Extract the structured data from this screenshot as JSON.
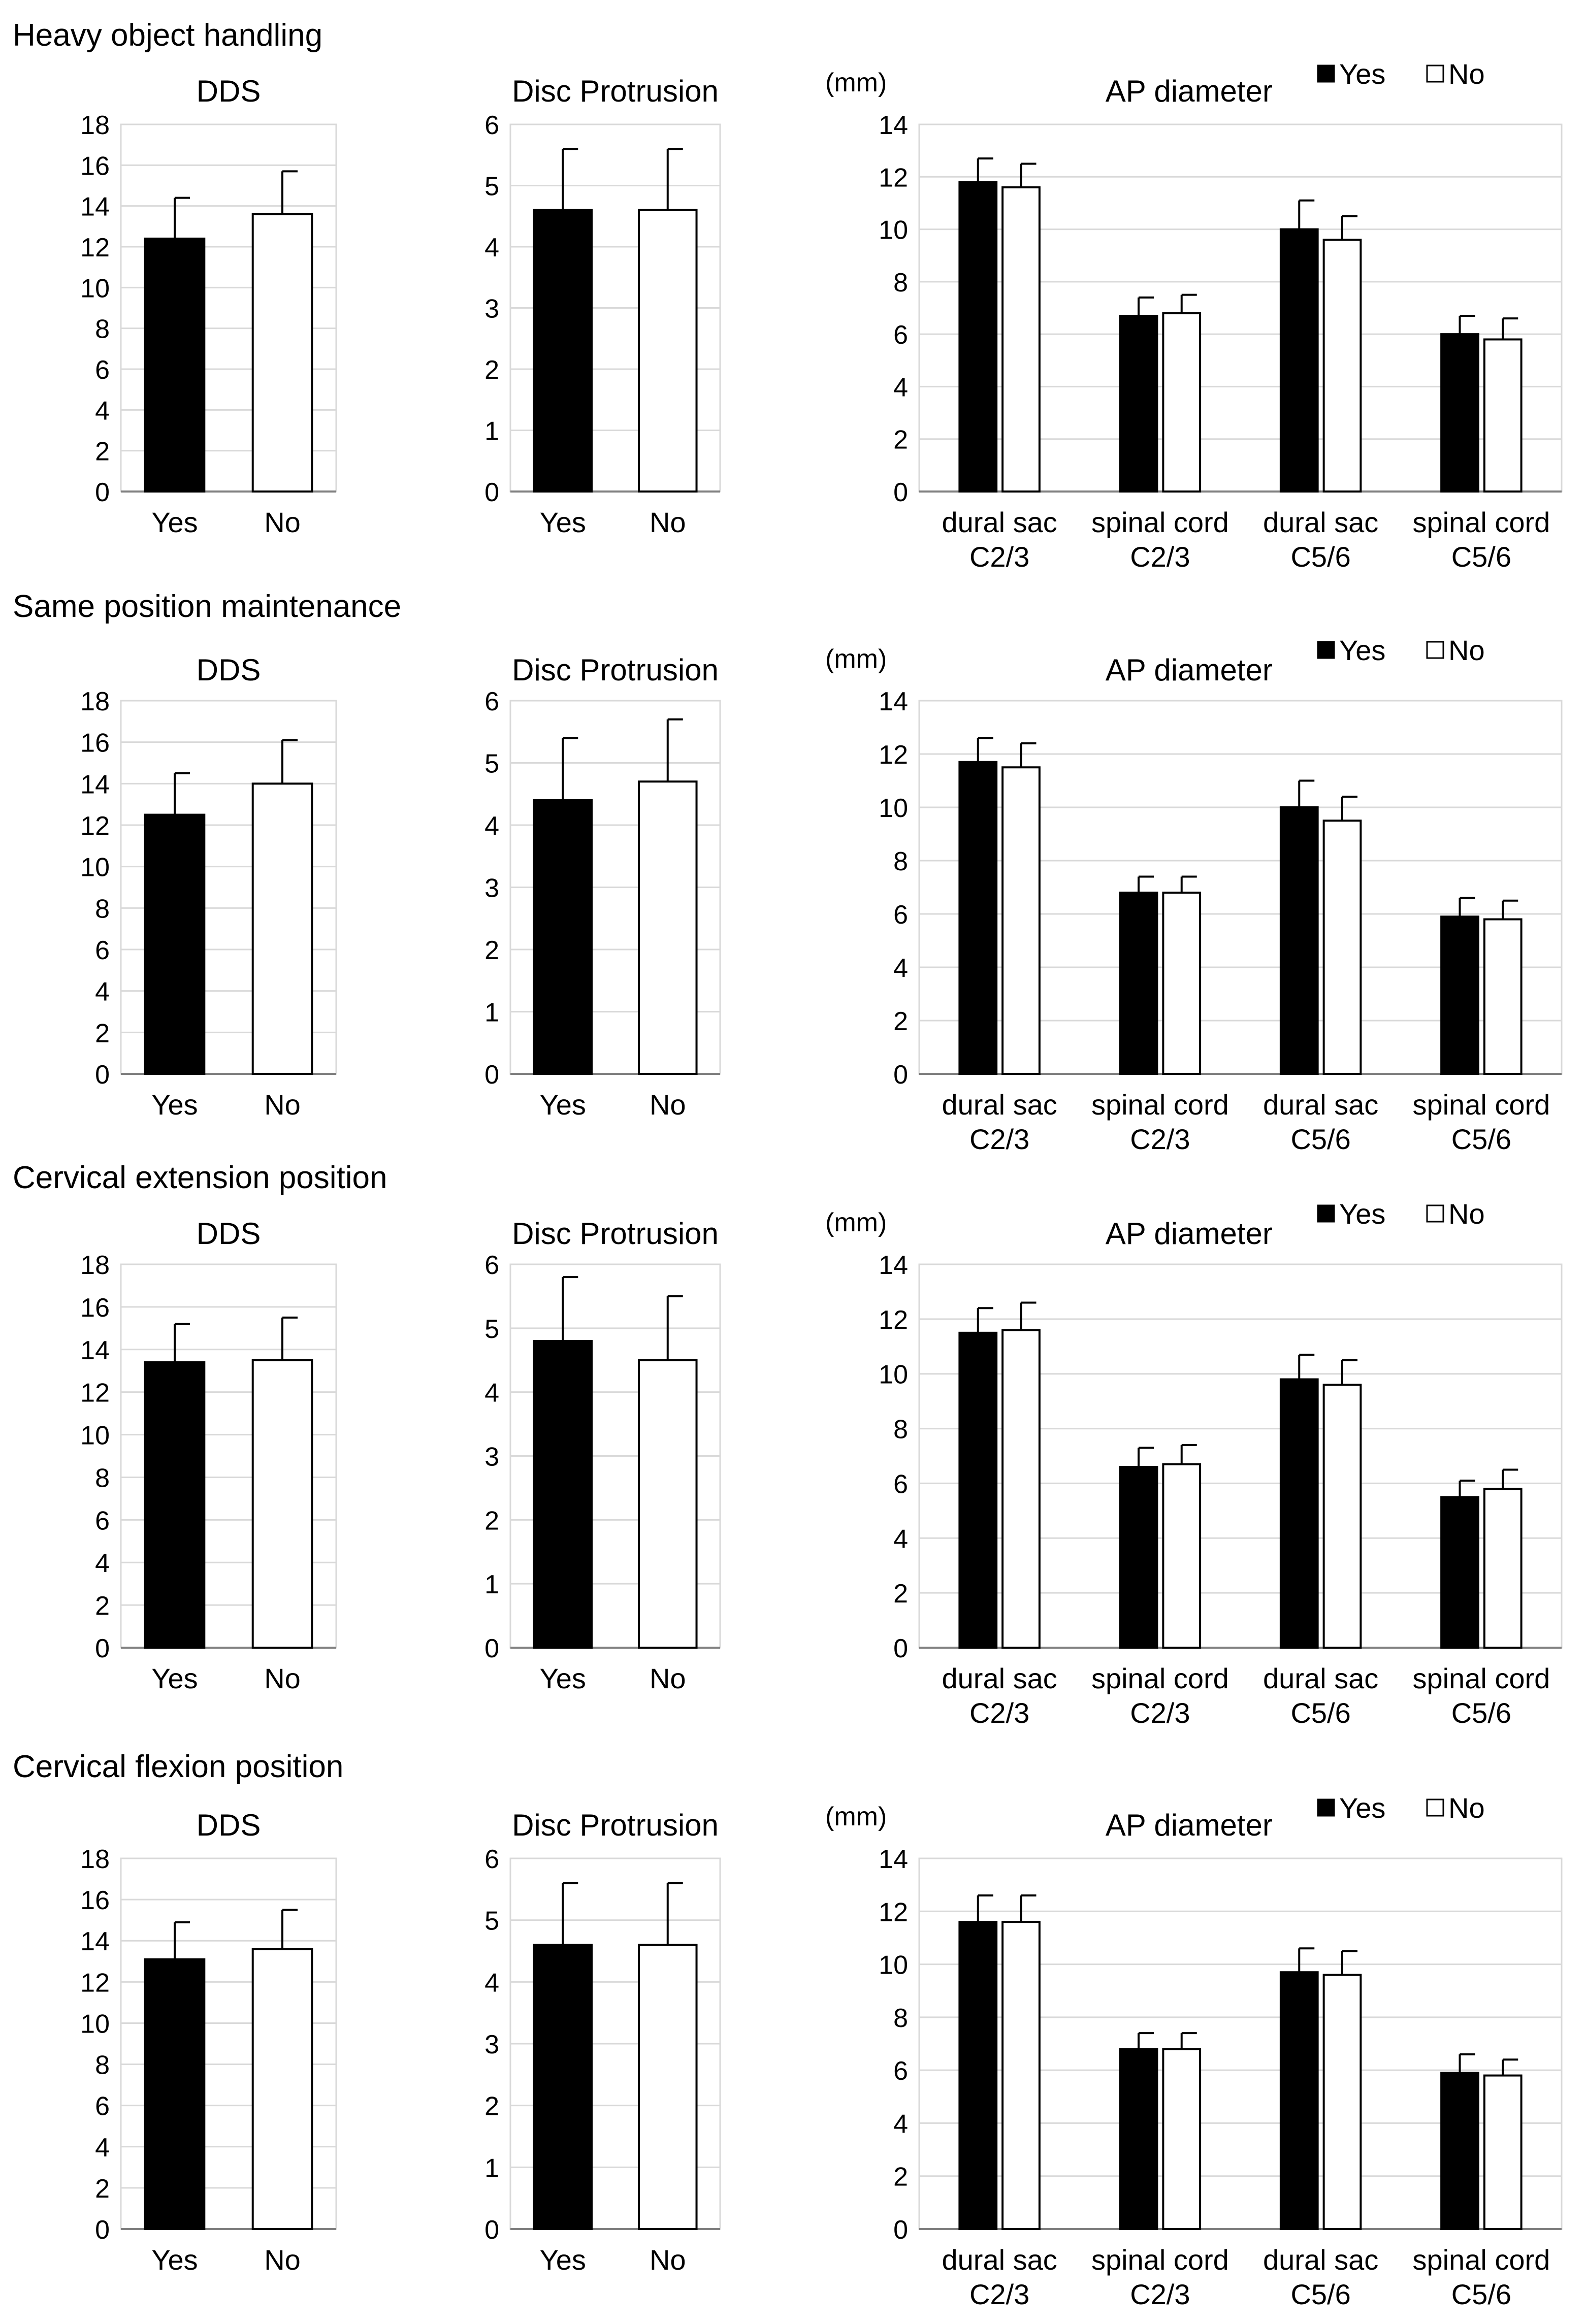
{
  "figure": {
    "legend": {
      "yes_label": "Yes",
      "no_label": "No",
      "yes_color": "#000000",
      "no_color": "#ffffff"
    },
    "sections": [
      {
        "title": "Heavy object handling"
      },
      {
        "title": "Same position maintenance"
      },
      {
        "title": "Cervical extension position"
      },
      {
        "title": "Cervical flexion position"
      }
    ]
  },
  "chart_data": [
    {
      "section": 0,
      "type": "bar",
      "title": "DDS",
      "ylabel": "",
      "ylim": [
        0,
        18
      ],
      "yticks": [
        0,
        2,
        4,
        6,
        8,
        10,
        12,
        14,
        16,
        18
      ],
      "categories": [
        "Yes",
        "No"
      ],
      "values": [
        12.4,
        13.6
      ],
      "errors": [
        2.0,
        2.1
      ],
      "colors": [
        "#000000",
        "#ffffff"
      ]
    },
    {
      "section": 0,
      "type": "bar",
      "title": "Disc Protrusion",
      "ylabel": "",
      "ylim": [
        0,
        6
      ],
      "yticks": [
        0,
        1,
        2,
        3,
        4,
        5,
        6
      ],
      "categories": [
        "Yes",
        "No"
      ],
      "values": [
        4.6,
        4.6
      ],
      "errors": [
        1.0,
        1.0
      ],
      "colors": [
        "#000000",
        "#ffffff"
      ]
    },
    {
      "section": 0,
      "type": "bar",
      "title": "AP diameter",
      "ylabel": "(mm)",
      "ylim": [
        0,
        14
      ],
      "yticks": [
        0,
        2,
        4,
        6,
        8,
        10,
        12,
        14
      ],
      "categories": [
        [
          "dural sac",
          "C2/3"
        ],
        [
          "spinal cord",
          "C2/3"
        ],
        [
          "dural sac",
          "C5/6"
        ],
        [
          "spinal cord",
          "C5/6"
        ]
      ],
      "legend": "top-right",
      "series": [
        {
          "name": "Yes",
          "color": "#000000",
          "values": [
            11.8,
            6.7,
            10.0,
            6.0
          ],
          "errors": [
            0.9,
            0.7,
            1.1,
            0.7
          ]
        },
        {
          "name": "No",
          "color": "#ffffff",
          "values": [
            11.6,
            6.8,
            9.6,
            5.8
          ],
          "errors": [
            0.9,
            0.7,
            0.9,
            0.8
          ]
        }
      ]
    },
    {
      "section": 1,
      "type": "bar",
      "title": "DDS",
      "ylabel": "",
      "ylim": [
        0,
        18
      ],
      "yticks": [
        0,
        2,
        4,
        6,
        8,
        10,
        12,
        14,
        16,
        18
      ],
      "categories": [
        "Yes",
        "No"
      ],
      "values": [
        12.5,
        14.0
      ],
      "errors": [
        2.0,
        2.1
      ],
      "colors": [
        "#000000",
        "#ffffff"
      ]
    },
    {
      "section": 1,
      "type": "bar",
      "title": "Disc Protrusion",
      "ylabel": "",
      "ylim": [
        0,
        6
      ],
      "yticks": [
        0,
        1,
        2,
        3,
        4,
        5,
        6
      ],
      "categories": [
        "Yes",
        "No"
      ],
      "values": [
        4.4,
        4.7
      ],
      "errors": [
        1.0,
        1.0
      ],
      "colors": [
        "#000000",
        "#ffffff"
      ]
    },
    {
      "section": 1,
      "type": "bar",
      "title": "AP diameter",
      "ylabel": "(mm)",
      "ylim": [
        0,
        14
      ],
      "yticks": [
        0,
        2,
        4,
        6,
        8,
        10,
        12,
        14
      ],
      "categories": [
        [
          "dural sac",
          "C2/3"
        ],
        [
          "spinal cord",
          "C2/3"
        ],
        [
          "dural sac",
          "C5/6"
        ],
        [
          "spinal cord",
          "C5/6"
        ]
      ],
      "legend": "top-right",
      "series": [
        {
          "name": "Yes",
          "color": "#000000",
          "values": [
            11.7,
            6.8,
            10.0,
            5.9
          ],
          "errors": [
            0.9,
            0.6,
            1.0,
            0.7
          ]
        },
        {
          "name": "No",
          "color": "#ffffff",
          "values": [
            11.5,
            6.8,
            9.5,
            5.8
          ],
          "errors": [
            0.9,
            0.6,
            0.9,
            0.7
          ]
        }
      ]
    },
    {
      "section": 2,
      "type": "bar",
      "title": "DDS",
      "ylabel": "",
      "ylim": [
        0,
        18
      ],
      "yticks": [
        0,
        2,
        4,
        6,
        8,
        10,
        12,
        14,
        16,
        18
      ],
      "categories": [
        "Yes",
        "No"
      ],
      "values": [
        13.4,
        13.5
      ],
      "errors": [
        1.8,
        2.0
      ],
      "colors": [
        "#000000",
        "#ffffff"
      ]
    },
    {
      "section": 2,
      "type": "bar",
      "title": "Disc Protrusion",
      "ylabel": "",
      "ylim": [
        0,
        6
      ],
      "yticks": [
        0,
        1,
        2,
        3,
        4,
        5,
        6
      ],
      "categories": [
        "Yes",
        "No"
      ],
      "values": [
        4.8,
        4.5
      ],
      "errors": [
        1.0,
        1.0
      ],
      "colors": [
        "#000000",
        "#ffffff"
      ]
    },
    {
      "section": 2,
      "type": "bar",
      "title": "AP diameter",
      "ylabel": "(mm)",
      "ylim": [
        0,
        14
      ],
      "yticks": [
        0,
        2,
        4,
        6,
        8,
        10,
        12,
        14
      ],
      "categories": [
        [
          "dural sac",
          "C2/3"
        ],
        [
          "spinal cord",
          "C2/3"
        ],
        [
          "dural sac",
          "C5/6"
        ],
        [
          "spinal cord",
          "C5/6"
        ]
      ],
      "legend": "top-right",
      "series": [
        {
          "name": "Yes",
          "color": "#000000",
          "values": [
            11.5,
            6.6,
            9.8,
            5.5
          ],
          "errors": [
            0.9,
            0.7,
            0.9,
            0.6
          ]
        },
        {
          "name": "No",
          "color": "#ffffff",
          "values": [
            11.6,
            6.7,
            9.6,
            5.8
          ],
          "errors": [
            1.0,
            0.7,
            0.9,
            0.7
          ]
        }
      ]
    },
    {
      "section": 3,
      "type": "bar",
      "title": "DDS",
      "ylabel": "",
      "ylim": [
        0,
        18
      ],
      "yticks": [
        0,
        2,
        4,
        6,
        8,
        10,
        12,
        14,
        16,
        18
      ],
      "categories": [
        "Yes",
        "No"
      ],
      "values": [
        13.1,
        13.6
      ],
      "errors": [
        1.8,
        1.9
      ],
      "colors": [
        "#000000",
        "#ffffff"
      ]
    },
    {
      "section": 3,
      "type": "bar",
      "title": "Disc Protrusion",
      "ylabel": "",
      "ylim": [
        0,
        6
      ],
      "yticks": [
        0,
        1,
        2,
        3,
        4,
        5,
        6
      ],
      "categories": [
        "Yes",
        "No"
      ],
      "values": [
        4.6,
        4.6
      ],
      "errors": [
        1.0,
        1.0
      ],
      "colors": [
        "#000000",
        "#ffffff"
      ]
    },
    {
      "section": 3,
      "type": "bar",
      "title": "AP diameter",
      "ylabel": "(mm)",
      "ylim": [
        0,
        14
      ],
      "yticks": [
        0,
        2,
        4,
        6,
        8,
        10,
        12,
        14
      ],
      "categories": [
        [
          "dural sac",
          "C2/3"
        ],
        [
          "spinal cord",
          "C2/3"
        ],
        [
          "dural sac",
          "C5/6"
        ],
        [
          "spinal cord",
          "C5/6"
        ]
      ],
      "legend": "top-right",
      "series": [
        {
          "name": "Yes",
          "color": "#000000",
          "values": [
            11.6,
            6.8,
            9.7,
            5.9
          ],
          "errors": [
            1.0,
            0.6,
            0.9,
            0.7
          ]
        },
        {
          "name": "No",
          "color": "#ffffff",
          "values": [
            11.6,
            6.8,
            9.6,
            5.8
          ],
          "errors": [
            1.0,
            0.6,
            0.9,
            0.6
          ]
        }
      ]
    }
  ]
}
